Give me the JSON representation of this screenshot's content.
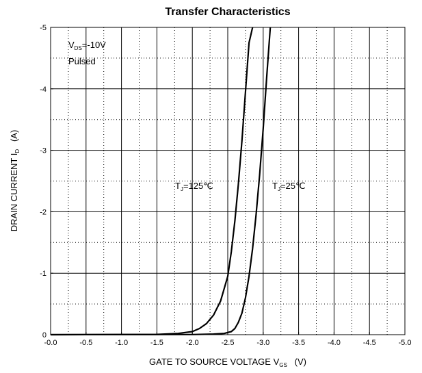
{
  "chart_data": {
    "type": "line",
    "title": "Transfer Characteristics",
    "xlabel": {
      "main": "GATE TO SOURCE VOLTAGE   V",
      "sub": "GS",
      "unit": "   (V)"
    },
    "ylabel": {
      "main": "DRAIN CURRENT   I",
      "sub": "D",
      "unit": "   (A)"
    },
    "xlim": [
      0,
      -5
    ],
    "ylim": [
      0,
      -5
    ],
    "x_ticks": [
      "-0.0",
      "-0.5",
      "-1.0",
      "-1.5",
      "-2.0",
      "-2.5",
      "-3.0",
      "-3.5",
      "-4.0",
      "-4.5",
      "-5.0"
    ],
    "y_ticks": [
      "0",
      "-1",
      "-2",
      "-3",
      "-4",
      "-5"
    ],
    "grid": true,
    "annotations": {
      "conditions": {
        "line1_main": "V",
        "line1_sub": "DS",
        "line1_rest": "=-10V",
        "line2": "Pulsed"
      },
      "tj125": {
        "main": "T",
        "sub": "J",
        "rest": "=125℃"
      },
      "tj25": {
        "main": "T",
        "sub": "J",
        "rest": "=25℃"
      }
    },
    "series": [
      {
        "name": "TJ=125℃",
        "x": [
          0,
          -1.5,
          -1.8,
          -2.0,
          -2.1,
          -2.2,
          -2.3,
          -2.4,
          -2.5,
          -2.55,
          -2.6,
          -2.65,
          -2.7,
          -2.75,
          -2.8,
          -2.85
        ],
        "y": [
          0,
          -0.005,
          -0.02,
          -0.05,
          -0.1,
          -0.18,
          -0.32,
          -0.55,
          -0.95,
          -1.35,
          -1.85,
          -2.45,
          -3.15,
          -3.95,
          -4.75,
          -5.0
        ]
      },
      {
        "name": "TJ=25℃",
        "x": [
          0,
          -2.0,
          -2.3,
          -2.45,
          -2.55,
          -2.6,
          -2.65,
          -2.7,
          -2.75,
          -2.8,
          -2.85,
          -2.9,
          -2.95,
          -3.0,
          -3.05,
          -3.1
        ],
        "y": [
          0,
          -0.002,
          -0.01,
          -0.02,
          -0.05,
          -0.1,
          -0.2,
          -0.35,
          -0.6,
          -0.95,
          -1.4,
          -1.95,
          -2.6,
          -3.35,
          -4.2,
          -5.0
        ]
      }
    ]
  }
}
